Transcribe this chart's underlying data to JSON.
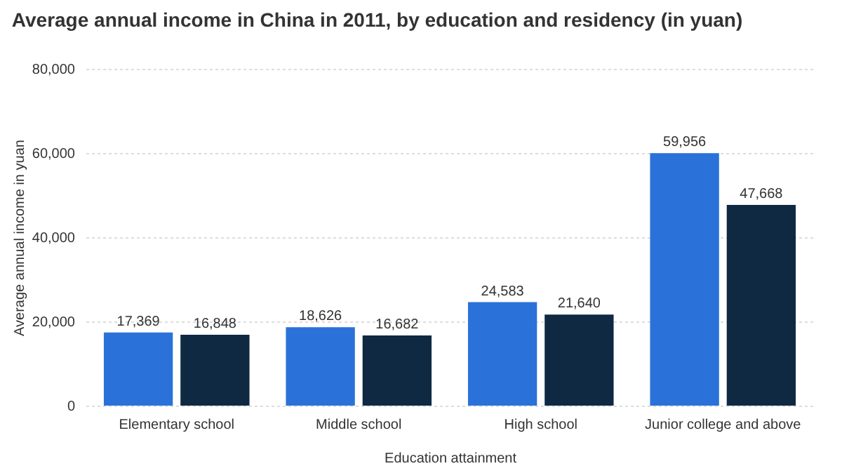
{
  "chart_data": {
    "type": "bar",
    "title": "Average annual income in China in 2011, by education and residency (in yuan)",
    "xlabel": "Education attainment",
    "ylabel": "Average annual income in yuan",
    "categories": [
      "Elementary school",
      "Middle school",
      "High school",
      "Junior college and above"
    ],
    "series": [
      {
        "color": "#2a72d9",
        "values": [
          17369,
          18626,
          24583,
          59956
        ],
        "value_labels": [
          "17,369",
          "18,626",
          "24,583",
          "59,956"
        ]
      },
      {
        "color": "#0f2942",
        "values": [
          16848,
          16682,
          21640,
          47668
        ],
        "value_labels": [
          "16,848",
          "16,682",
          "21,640",
          "47,668"
        ]
      }
    ],
    "ylim": [
      0,
      80000
    ],
    "yticks": [
      0,
      {
        "value": 20000,
        "label": "20,000"
      },
      {
        "value": 40000,
        "label": "40,000"
      },
      {
        "value": 60000,
        "label": "60,000"
      },
      {
        "value": 80000,
        "label": "80,000"
      }
    ],
    "grid": "y",
    "legend": false
  }
}
